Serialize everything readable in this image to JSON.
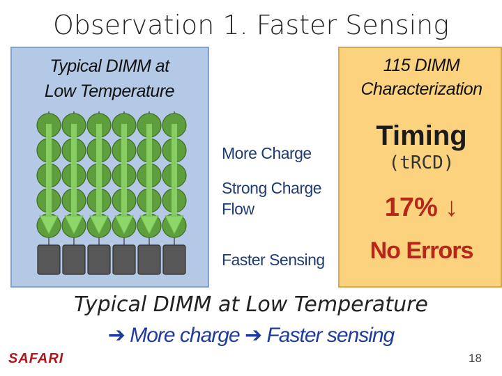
{
  "title": "Observation 1. Faster Sensing",
  "left_panel": {
    "heading_line1": "Typical DIMM at",
    "heading_line2": "Low Temperature"
  },
  "middle_labels": {
    "more_charge": "More Charge",
    "strong_flow_line1": "Strong Charge",
    "strong_flow_line2": "Flow",
    "faster_sensing": "Faster Sensing"
  },
  "right_panel": {
    "heading_line1": "115 DIMM",
    "heading_line2": "Characterization",
    "timing": "Timing",
    "timing_param": "(tRCD)",
    "reduction": "17% ↓",
    "result": "No Errors"
  },
  "bottom": {
    "line1": "Typical DIMM at Low Temperature",
    "part1": "More charge",
    "part2": "Faster sensing"
  },
  "logo": "SAFARI",
  "page_number": "18",
  "colors": {
    "cell": "#5f9e3c",
    "cell_dark": "#3d6e22",
    "arrow": "#8fd66a",
    "sense_amp": "#575757",
    "accent_red": "#b8261a"
  }
}
